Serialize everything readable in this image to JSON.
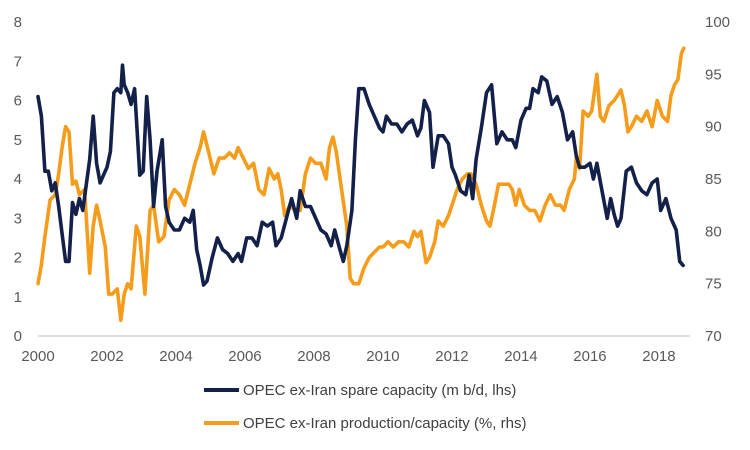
{
  "chart_data": {
    "type": "line",
    "colors": {
      "spare": "#13204a",
      "ratio": "#f59c1a"
    },
    "x_axis": {
      "ticks": [
        "2000",
        "2002",
        "2004",
        "2006",
        "2008",
        "2010",
        "2012",
        "2014",
        "2016",
        "2018"
      ],
      "range": [
        2000,
        2018.9
      ]
    },
    "y_left": {
      "ticks": [
        "0",
        "1",
        "2",
        "3",
        "4",
        "5",
        "6",
        "7",
        "8"
      ],
      "range": [
        0,
        8
      ]
    },
    "y_right": {
      "ticks": [
        "70",
        "75",
        "80",
        "85",
        "90",
        "95",
        "100"
      ],
      "range": [
        70,
        100
      ]
    },
    "grid": false,
    "legend_position": "bottom",
    "series": [
      {
        "name": "OPEC ex-Iran spare capacity (m b/d, lhs)",
        "axis": "left",
        "points": [
          [
            2000.0,
            6.1
          ],
          [
            2000.1,
            5.6
          ],
          [
            2000.2,
            4.2
          ],
          [
            2000.3,
            4.2
          ],
          [
            2000.4,
            3.7
          ],
          [
            2000.5,
            3.9
          ],
          [
            2000.6,
            3.3
          ],
          [
            2000.7,
            2.6
          ],
          [
            2000.8,
            1.9
          ],
          [
            2000.9,
            1.9
          ],
          [
            2001.0,
            3.4
          ],
          [
            2001.1,
            3.1
          ],
          [
            2001.2,
            3.5
          ],
          [
            2001.3,
            3.2
          ],
          [
            2001.5,
            4.5
          ],
          [
            2001.6,
            5.6
          ],
          [
            2001.7,
            4.4
          ],
          [
            2001.8,
            3.9
          ],
          [
            2002.0,
            4.3
          ],
          [
            2002.1,
            4.7
          ],
          [
            2002.2,
            6.2
          ],
          [
            2002.3,
            6.3
          ],
          [
            2002.4,
            6.2
          ],
          [
            2002.45,
            6.9
          ],
          [
            2002.5,
            6.4
          ],
          [
            2002.6,
            6.2
          ],
          [
            2002.7,
            5.9
          ],
          [
            2002.8,
            6.3
          ],
          [
            2002.95,
            4.1
          ],
          [
            2003.05,
            4.2
          ],
          [
            2003.15,
            6.1
          ],
          [
            2003.25,
            5.0
          ],
          [
            2003.35,
            3.3
          ],
          [
            2003.45,
            4.2
          ],
          [
            2003.6,
            5.0
          ],
          [
            2003.7,
            3.3
          ],
          [
            2003.8,
            2.9
          ],
          [
            2003.95,
            2.7
          ],
          [
            2004.1,
            2.7
          ],
          [
            2004.25,
            3.0
          ],
          [
            2004.4,
            2.9
          ],
          [
            2004.5,
            3.2
          ],
          [
            2004.6,
            2.2
          ],
          [
            2004.7,
            1.8
          ],
          [
            2004.8,
            1.3
          ],
          [
            2004.9,
            1.4
          ],
          [
            2005.05,
            2.0
          ],
          [
            2005.2,
            2.5
          ],
          [
            2005.35,
            2.2
          ],
          [
            2005.5,
            2.1
          ],
          [
            2005.65,
            1.9
          ],
          [
            2005.8,
            2.1
          ],
          [
            2005.9,
            1.9
          ],
          [
            2006.05,
            2.5
          ],
          [
            2006.2,
            2.5
          ],
          [
            2006.35,
            2.3
          ],
          [
            2006.5,
            2.9
          ],
          [
            2006.65,
            2.8
          ],
          [
            2006.8,
            2.9
          ],
          [
            2006.9,
            2.3
          ],
          [
            2007.05,
            2.5
          ],
          [
            2007.2,
            3.0
          ],
          [
            2007.35,
            3.5
          ],
          [
            2007.5,
            3.0
          ],
          [
            2007.6,
            3.7
          ],
          [
            2007.75,
            3.3
          ],
          [
            2007.9,
            3.3
          ],
          [
            2008.05,
            3.0
          ],
          [
            2008.2,
            2.7
          ],
          [
            2008.35,
            2.6
          ],
          [
            2008.5,
            2.3
          ],
          [
            2008.6,
            2.7
          ],
          [
            2008.75,
            2.2
          ],
          [
            2008.85,
            1.9
          ],
          [
            2008.95,
            2.3
          ],
          [
            2009.1,
            3.2
          ],
          [
            2009.2,
            5.0
          ],
          [
            2009.3,
            6.3
          ],
          [
            2009.45,
            6.3
          ],
          [
            2009.6,
            5.9
          ],
          [
            2009.75,
            5.6
          ],
          [
            2009.9,
            5.3
          ],
          [
            2010.0,
            5.2
          ],
          [
            2010.1,
            5.6
          ],
          [
            2010.25,
            5.4
          ],
          [
            2010.4,
            5.4
          ],
          [
            2010.55,
            5.2
          ],
          [
            2010.7,
            5.4
          ],
          [
            2010.85,
            5.5
          ],
          [
            2011.0,
            5.1
          ],
          [
            2011.1,
            5.3
          ],
          [
            2011.2,
            6.0
          ],
          [
            2011.35,
            5.7
          ],
          [
            2011.45,
            4.3
          ],
          [
            2011.6,
            5.1
          ],
          [
            2011.75,
            5.1
          ],
          [
            2011.9,
            4.9
          ],
          [
            2012.0,
            4.3
          ],
          [
            2012.1,
            4.1
          ],
          [
            2012.25,
            3.7
          ],
          [
            2012.4,
            3.6
          ],
          [
            2012.5,
            4.1
          ],
          [
            2012.6,
            3.5
          ],
          [
            2012.7,
            4.5
          ],
          [
            2012.85,
            5.3
          ],
          [
            2013.0,
            6.2
          ],
          [
            2013.15,
            6.4
          ],
          [
            2013.3,
            4.9
          ],
          [
            2013.45,
            5.2
          ],
          [
            2013.6,
            5.0
          ],
          [
            2013.75,
            5.0
          ],
          [
            2013.85,
            4.8
          ],
          [
            2014.0,
            5.5
          ],
          [
            2014.15,
            5.8
          ],
          [
            2014.25,
            5.8
          ],
          [
            2014.35,
            6.3
          ],
          [
            2014.5,
            6.2
          ],
          [
            2014.6,
            6.6
          ],
          [
            2014.75,
            6.5
          ],
          [
            2014.9,
            5.9
          ],
          [
            2015.05,
            6.1
          ],
          [
            2015.2,
            5.7
          ],
          [
            2015.35,
            5.0
          ],
          [
            2015.5,
            5.2
          ],
          [
            2015.6,
            4.6
          ],
          [
            2015.7,
            4.3
          ],
          [
            2015.85,
            4.3
          ],
          [
            2016.0,
            4.4
          ],
          [
            2016.1,
            4.0
          ],
          [
            2016.2,
            4.4
          ],
          [
            2016.35,
            3.7
          ],
          [
            2016.5,
            3.0
          ],
          [
            2016.6,
            3.5
          ],
          [
            2016.7,
            3.1
          ],
          [
            2016.8,
            2.8
          ],
          [
            2016.9,
            3.0
          ],
          [
            2017.05,
            4.2
          ],
          [
            2017.2,
            4.3
          ],
          [
            2017.35,
            3.9
          ],
          [
            2017.5,
            3.7
          ],
          [
            2017.65,
            3.6
          ],
          [
            2017.8,
            3.9
          ],
          [
            2017.95,
            4.0
          ],
          [
            2018.05,
            3.2
          ],
          [
            2018.2,
            3.5
          ],
          [
            2018.35,
            3.0
          ],
          [
            2018.5,
            2.7
          ],
          [
            2018.6,
            1.9
          ],
          [
            2018.7,
            1.8
          ]
        ]
      },
      {
        "name": "OPEC ex-Iran production/capacity (%, rhs)",
        "axis": "right",
        "points": [
          [
            2000.0,
            75.0
          ],
          [
            2000.1,
            76.8
          ],
          [
            2000.2,
            79.5
          ],
          [
            2000.35,
            83.0
          ],
          [
            2000.5,
            83.5
          ],
          [
            2000.6,
            85.5
          ],
          [
            2000.7,
            88.0
          ],
          [
            2000.8,
            90.0
          ],
          [
            2000.9,
            89.5
          ],
          [
            2001.0,
            84.5
          ],
          [
            2001.1,
            84.8
          ],
          [
            2001.2,
            83.5
          ],
          [
            2001.35,
            84.0
          ],
          [
            2001.5,
            76.0
          ],
          [
            2001.6,
            80.5
          ],
          [
            2001.7,
            82.5
          ],
          [
            2001.8,
            81.0
          ],
          [
            2001.95,
            78.5
          ],
          [
            2002.05,
            74.0
          ],
          [
            2002.15,
            74.0
          ],
          [
            2002.3,
            74.5
          ],
          [
            2002.4,
            71.5
          ],
          [
            2002.5,
            74.0
          ],
          [
            2002.6,
            75.0
          ],
          [
            2002.7,
            74.5
          ],
          [
            2002.85,
            80.5
          ],
          [
            2002.95,
            79.5
          ],
          [
            2003.1,
            74.0
          ],
          [
            2003.25,
            82.0
          ],
          [
            2003.35,
            82.5
          ],
          [
            2003.5,
            79.0
          ],
          [
            2003.65,
            79.5
          ],
          [
            2003.8,
            83.0
          ],
          [
            2003.95,
            84.0
          ],
          [
            2004.1,
            83.5
          ],
          [
            2004.25,
            82.5
          ],
          [
            2004.4,
            84.5
          ],
          [
            2004.55,
            86.5
          ],
          [
            2004.7,
            88.0
          ],
          [
            2004.8,
            89.5
          ],
          [
            2004.95,
            87.5
          ],
          [
            2005.1,
            85.5
          ],
          [
            2005.25,
            87.0
          ],
          [
            2005.4,
            87.0
          ],
          [
            2005.55,
            87.5
          ],
          [
            2005.7,
            87.0
          ],
          [
            2005.8,
            88.0
          ],
          [
            2005.95,
            87.0
          ],
          [
            2006.1,
            86.0
          ],
          [
            2006.25,
            86.5
          ],
          [
            2006.4,
            84.0
          ],
          [
            2006.55,
            83.5
          ],
          [
            2006.7,
            86.0
          ],
          [
            2006.85,
            85.0
          ],
          [
            2006.95,
            85.5
          ],
          [
            2007.05,
            84.0
          ],
          [
            2007.15,
            81.5
          ],
          [
            2007.3,
            82.5
          ],
          [
            2007.45,
            82.0
          ],
          [
            2007.6,
            82.0
          ],
          [
            2007.75,
            85.5
          ],
          [
            2007.9,
            87.0
          ],
          [
            2008.05,
            86.5
          ],
          [
            2008.2,
            86.5
          ],
          [
            2008.35,
            85.0
          ],
          [
            2008.45,
            88.0
          ],
          [
            2008.55,
            89.0
          ],
          [
            2008.65,
            87.5
          ],
          [
            2008.8,
            84.0
          ],
          [
            2008.95,
            80.5
          ],
          [
            2009.05,
            75.5
          ],
          [
            2009.15,
            75.0
          ],
          [
            2009.3,
            75.0
          ],
          [
            2009.45,
            76.5
          ],
          [
            2009.6,
            77.5
          ],
          [
            2009.75,
            78.0
          ],
          [
            2009.9,
            78.5
          ],
          [
            2010.0,
            78.5
          ],
          [
            2010.15,
            79.0
          ],
          [
            2010.3,
            78.5
          ],
          [
            2010.45,
            79.0
          ],
          [
            2010.6,
            79.0
          ],
          [
            2010.75,
            78.5
          ],
          [
            2010.9,
            80.0
          ],
          [
            2011.0,
            79.5
          ],
          [
            2011.1,
            80.0
          ],
          [
            2011.25,
            77.0
          ],
          [
            2011.35,
            77.5
          ],
          [
            2011.5,
            79.0
          ],
          [
            2011.6,
            81.0
          ],
          [
            2011.75,
            80.5
          ],
          [
            2011.9,
            81.5
          ],
          [
            2012.0,
            82.5
          ],
          [
            2012.15,
            84.0
          ],
          [
            2012.3,
            85.0
          ],
          [
            2012.45,
            85.5
          ],
          [
            2012.55,
            85.5
          ],
          [
            2012.7,
            84.5
          ],
          [
            2012.85,
            82.5
          ],
          [
            2013.0,
            81.0
          ],
          [
            2013.1,
            80.5
          ],
          [
            2013.2,
            82.0
          ],
          [
            2013.35,
            84.5
          ],
          [
            2013.5,
            84.5
          ],
          [
            2013.65,
            84.5
          ],
          [
            2013.75,
            84.0
          ],
          [
            2013.85,
            82.5
          ],
          [
            2013.95,
            84.0
          ],
          [
            2014.1,
            82.5
          ],
          [
            2014.25,
            82.0
          ],
          [
            2014.4,
            82.0
          ],
          [
            2014.55,
            81.0
          ],
          [
            2014.7,
            82.5
          ],
          [
            2014.85,
            83.5
          ],
          [
            2015.0,
            82.5
          ],
          [
            2015.15,
            82.5
          ],
          [
            2015.25,
            82.0
          ],
          [
            2015.4,
            84.0
          ],
          [
            2015.55,
            85.0
          ],
          [
            2015.6,
            87.0
          ],
          [
            2015.7,
            86.0
          ],
          [
            2015.8,
            91.5
          ],
          [
            2015.95,
            91.0
          ],
          [
            2016.05,
            91.5
          ],
          [
            2016.2,
            95.0
          ],
          [
            2016.3,
            91.0
          ],
          [
            2016.4,
            90.5
          ],
          [
            2016.55,
            92.0
          ],
          [
            2016.7,
            92.5
          ],
          [
            2016.8,
            93.0
          ],
          [
            2016.9,
            93.5
          ],
          [
            2017.0,
            92.0
          ],
          [
            2017.1,
            89.5
          ],
          [
            2017.2,
            90.0
          ],
          [
            2017.35,
            91.0
          ],
          [
            2017.5,
            90.5
          ],
          [
            2017.65,
            91.5
          ],
          [
            2017.8,
            90.0
          ],
          [
            2017.95,
            92.5
          ],
          [
            2018.1,
            91.0
          ],
          [
            2018.25,
            90.5
          ],
          [
            2018.35,
            93.0
          ],
          [
            2018.45,
            94.0
          ],
          [
            2018.55,
            94.5
          ],
          [
            2018.65,
            97.0
          ],
          [
            2018.72,
            97.5
          ]
        ]
      }
    ]
  }
}
